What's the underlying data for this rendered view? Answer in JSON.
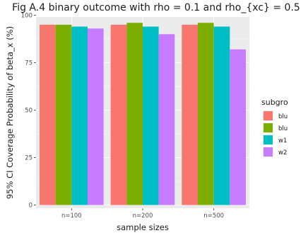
{
  "chart_data": {
    "type": "bar",
    "title": "Fig A.4 binary outcome with rho = 0.1 and rho_{xc} = 0.5",
    "xlabel": "sample sizes",
    "ylabel": "95% CI Coverage Probability of beta_x (%)",
    "ylim": [
      0,
      100
    ],
    "yticks": [
      0,
      25,
      50,
      75,
      100
    ],
    "categories": [
      "n=100",
      "n=200",
      "n=500"
    ],
    "legend_title": "subgro",
    "legend_position": "right",
    "grid": true,
    "series": [
      {
        "name": "blu",
        "color": "#F8766D",
        "values": [
          95,
          95,
          95
        ]
      },
      {
        "name": "blu",
        "color": "#7CAE00",
        "values": [
          95,
          96,
          96
        ]
      },
      {
        "name": "w1",
        "color": "#00BFC4",
        "values": [
          94,
          94,
          94
        ]
      },
      {
        "name": "w2",
        "color": "#C77CFF",
        "values": [
          93,
          90,
          82
        ]
      }
    ]
  }
}
